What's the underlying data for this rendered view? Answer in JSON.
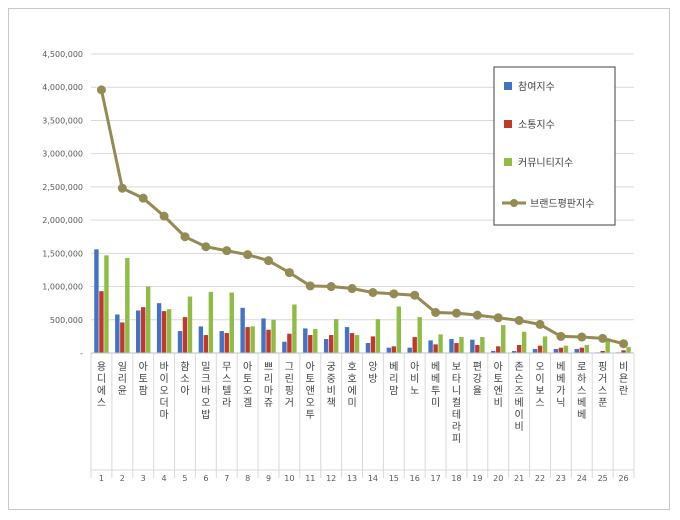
{
  "chart_data": {
    "type": "bar",
    "ylim": [
      0,
      4500000
    ],
    "ytick_labels": [
      "-",
      "500,000",
      "1,000,000",
      "1,500,000",
      "2,000,000",
      "2,500,000",
      "3,000,000",
      "3,500,000",
      "4,000,000",
      "4,500,000"
    ],
    "yticks": [
      0,
      500000,
      1000000,
      1500000,
      2000000,
      2500000,
      3000000,
      3500000,
      4000000,
      4500000
    ],
    "grid": true,
    "legend_position": "top-right",
    "categories": [
      "용디에스",
      "일리윤",
      "아토팜",
      "바이오더마",
      "함소아",
      "밀크바오밥",
      "무스텔라",
      "아토오겔",
      "쁘리마쥬",
      "그린핑거",
      "아토앤오투",
      "궁중비책",
      "호호에미",
      "앙방",
      "베리맘",
      "아비노",
      "베베투미",
      "보타니컬테라피",
      "편강율",
      "아토엔비",
      "존슨즈베이비",
      "오이보스",
      "베베가닉",
      "로하스베베",
      "핑거스푼",
      "비욘란"
    ],
    "indices": [
      "1",
      "2",
      "3",
      "4",
      "5",
      "6",
      "7",
      "8",
      "9",
      "10",
      "11",
      "12",
      "13",
      "14",
      "15",
      "16",
      "17",
      "18",
      "19",
      "20",
      "21",
      "22",
      "23",
      "24",
      "25",
      "26"
    ],
    "series": [
      {
        "name": "참여지수",
        "color": "#4472c4",
        "kind": "bar",
        "values": [
          1560000,
          580000,
          640000,
          750000,
          330000,
          400000,
          330000,
          680000,
          520000,
          170000,
          370000,
          210000,
          390000,
          150000,
          80000,
          80000,
          190000,
          210000,
          200000,
          30000,
          30000,
          60000,
          60000,
          60000,
          10000,
          10000
        ]
      },
      {
        "name": "소통지수",
        "color": "#c0392b",
        "kind": "bar",
        "values": [
          930000,
          460000,
          690000,
          630000,
          540000,
          270000,
          300000,
          390000,
          350000,
          290000,
          270000,
          270000,
          300000,
          250000,
          100000,
          240000,
          130000,
          150000,
          120000,
          100000,
          120000,
          110000,
          80000,
          80000,
          30000,
          40000
        ]
      },
      {
        "name": "커뮤니티지수",
        "color": "#8fbc45",
        "kind": "bar",
        "values": [
          1470000,
          1430000,
          1000000,
          660000,
          850000,
          920000,
          910000,
          400000,
          500000,
          730000,
          360000,
          510000,
          270000,
          510000,
          700000,
          540000,
          280000,
          240000,
          240000,
          420000,
          320000,
          250000,
          110000,
          120000,
          220000,
          90000
        ]
      },
      {
        "name": "브랜드평판지수",
        "color": "#948a54",
        "kind": "line",
        "values": [
          3960000,
          2480000,
          2330000,
          2060000,
          1750000,
          1600000,
          1540000,
          1480000,
          1390000,
          1210000,
          1010000,
          1000000,
          970000,
          910000,
          890000,
          870000,
          610000,
          600000,
          570000,
          530000,
          490000,
          430000,
          250000,
          240000,
          220000,
          140000
        ]
      }
    ]
  }
}
